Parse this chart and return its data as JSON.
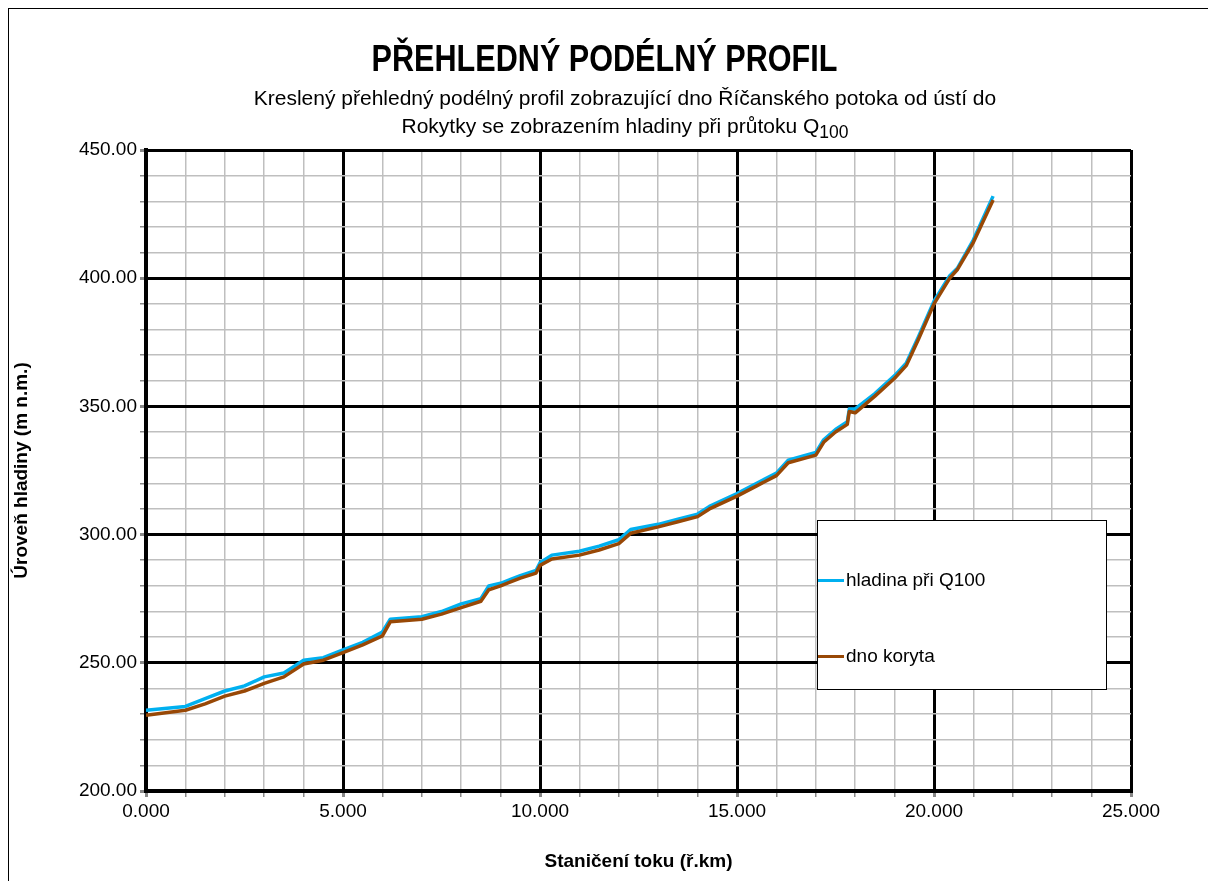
{
  "chart_data": {
    "type": "line",
    "title": "PŘEHLEDNÝ PODÉLNÝ PROFIL",
    "subtitle": "Kreslený přehledný podélný profil zobrazující dno Říčanského potoka od ústí do Rokytky se zobrazením hladiny při průtoku Q$_{100}$",
    "xlabel": "Staničení toku (ř.km)",
    "ylabel": "Úroveň hladiny (m n.m.)",
    "x": [
      0,
      1,
      1.5,
      2,
      2.5,
      3,
      3.5,
      4,
      4.5,
      5,
      5.5,
      6,
      6.2,
      7,
      7.5,
      8,
      8.5,
      8.7,
      9,
      9.5,
      9.9,
      10,
      10.3,
      11,
      11.5,
      12,
      12.3,
      13,
      13.5,
      14,
      14.3,
      15,
      15.5,
      16,
      16.3,
      17,
      17.2,
      17.5,
      17.8,
      17.85,
      18,
      18.5,
      19,
      19.3,
      19.6,
      20,
      20.4,
      20.6,
      21,
      21.5
    ],
    "series": [
      {
        "name": "hladina při Q100",
        "color": "#00b0f0",
        "values": [
          231.5,
          233,
          236,
          239,
          241,
          244.5,
          246,
          251,
          252,
          255,
          258,
          262,
          267,
          268,
          270,
          273,
          275,
          280,
          281,
          284,
          286,
          289,
          292,
          293.5,
          295.5,
          298,
          302,
          304,
          306,
          308,
          311,
          316,
          320,
          324,
          329,
          332,
          337,
          341,
          344,
          349,
          349,
          355,
          362,
          367,
          377,
          391,
          401,
          404,
          415,
          432
        ]
      },
      {
        "name": "dno koryta",
        "color": "#984806",
        "values": [
          229.5,
          231.5,
          234,
          237,
          239,
          242,
          244.5,
          249.5,
          251,
          254,
          257,
          260.5,
          266,
          267,
          269,
          271.5,
          274,
          278.5,
          280,
          283,
          285,
          288,
          290.5,
          292,
          294,
          296.5,
          300.5,
          303,
          305,
          307,
          310,
          315,
          319,
          323,
          328,
          331,
          336,
          340,
          343,
          348,
          347.5,
          354,
          361,
          366,
          376,
          390,
          400,
          403.5,
          414,
          430.5
        ]
      }
    ],
    "xlim": [
      0,
      25
    ],
    "xticks": [
      {
        "value": 0,
        "label": "0.000"
      },
      {
        "value": 1,
        "label": null
      },
      {
        "value": 2,
        "label": null
      },
      {
        "value": 3,
        "label": null
      },
      {
        "value": 4,
        "label": null
      },
      {
        "value": 5,
        "label": "5.000"
      },
      {
        "value": 6,
        "label": null
      },
      {
        "value": 7,
        "label": null
      },
      {
        "value": 8,
        "label": null
      },
      {
        "value": 9,
        "label": null
      },
      {
        "value": 10,
        "label": "10.000"
      },
      {
        "value": 11,
        "label": null
      },
      {
        "value": 12,
        "label": null
      },
      {
        "value": 13,
        "label": null
      },
      {
        "value": 14,
        "label": null
      },
      {
        "value": 15,
        "label": "15.000"
      },
      {
        "value": 16,
        "label": null
      },
      {
        "value": 17,
        "label": null
      },
      {
        "value": 18,
        "label": null
      },
      {
        "value": 19,
        "label": null
      },
      {
        "value": 20,
        "label": "20.000"
      },
      {
        "value": 21,
        "label": null
      },
      {
        "value": 22,
        "label": null
      },
      {
        "value": 23,
        "label": null
      },
      {
        "value": 24,
        "label": null
      },
      {
        "value": 25,
        "label": "25.000"
      }
    ],
    "ylim": [
      200,
      450
    ],
    "yticks": [
      {
        "value": 200,
        "label": "200.00"
      },
      {
        "value": 210,
        "label": null
      },
      {
        "value": 220,
        "label": null
      },
      {
        "value": 230,
        "label": null
      },
      {
        "value": 240,
        "label": null
      },
      {
        "value": 250,
        "label": "250.00"
      },
      {
        "value": 260,
        "label": null
      },
      {
        "value": 270,
        "label": null
      },
      {
        "value": 280,
        "label": null
      },
      {
        "value": 290,
        "label": null
      },
      {
        "value": 300,
        "label": "300.00"
      },
      {
        "value": 310,
        "label": null
      },
      {
        "value": 320,
        "label": null
      },
      {
        "value": 330,
        "label": null
      },
      {
        "value": 340,
        "label": null
      },
      {
        "value": 350,
        "label": "350.00"
      },
      {
        "value": 360,
        "label": null
      },
      {
        "value": 370,
        "label": null
      },
      {
        "value": 380,
        "label": null
      },
      {
        "value": 390,
        "label": null
      },
      {
        "value": 400,
        "label": "400.00"
      },
      {
        "value": 410,
        "label": null
      },
      {
        "value": 420,
        "label": null
      },
      {
        "value": 430,
        "label": null
      },
      {
        "value": 440,
        "label": null
      },
      {
        "value": 450,
        "label": "450.00"
      }
    ],
    "grid": true,
    "legend": "bottom right",
    "marker": "none",
    "line_style": "solid"
  }
}
